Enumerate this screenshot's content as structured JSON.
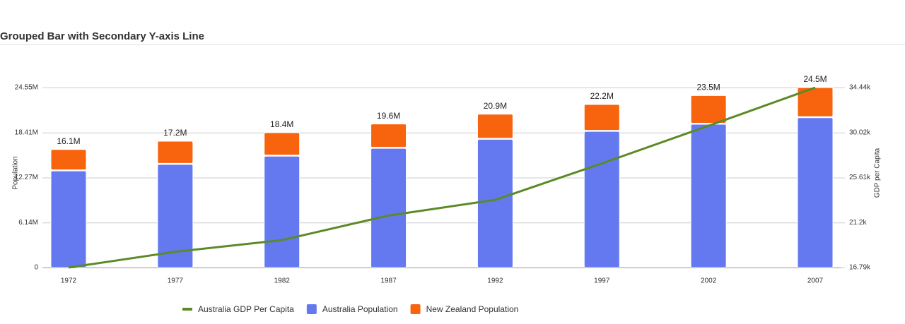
{
  "chart_data": {
    "type": "bar",
    "stacked": true,
    "title": "Grouped Bar with Secondary Y-axis Line",
    "y_label": "Population",
    "y2_label": "GDP per Capita",
    "categories": [
      "1972",
      "1977",
      "1982",
      "1987",
      "1992",
      "1997",
      "2002",
      "2007"
    ],
    "series": [
      {
        "name": "Australia GDP Per Capita",
        "color": "#5b8a26",
        "type": "line",
        "axis": "y2",
        "values": [
          16788.63,
          18334.2,
          19477.01,
          21888.89,
          23424.77,
          26997.94,
          30687.75,
          34435.37
        ]
      },
      {
        "name": "Australia Population",
        "color": "#6479f0",
        "values": [
          13177000,
          14074100,
          15184200,
          16257249,
          17481977,
          18565243,
          19546792,
          20434176
        ]
      },
      {
        "name": "New Zealand Population",
        "color": "#f8640e",
        "values": [
          2929100,
          3164900,
          3210650,
          3317166,
          3437674,
          3676187,
          3908037,
          4115771
        ]
      }
    ],
    "stack_labels": [
      "16.1M",
      "17.2M",
      "18.4M",
      "19.6M",
      "20.9M",
      "22.2M",
      "23.5M",
      "24.5M"
    ],
    "ylim": [
      0,
      24550000
    ],
    "yticks": [
      0,
      {
        "value": 6140000,
        "label": "6.14M"
      },
      {
        "value": 12270000,
        "label": "12.27M"
      },
      {
        "value": 18410000,
        "label": "18.41M"
      },
      {
        "value": 24550000,
        "label": "24.55M"
      }
    ],
    "y2lim": [
      16790,
      34440
    ],
    "y2ticks": [
      {
        "value": 16790,
        "label": "16.79k"
      },
      {
        "value": 21200,
        "label": "21.2k"
      },
      {
        "value": 25610,
        "label": "25.61k"
      },
      {
        "value": 30020,
        "label": "30.02k"
      },
      {
        "value": 34440,
        "label": "34.44k"
      }
    ],
    "grid": true,
    "legend": "bottom"
  }
}
